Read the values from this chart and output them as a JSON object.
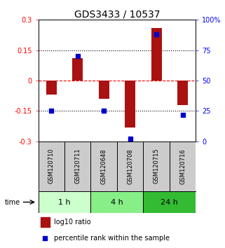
{
  "title": "GDS3433 / 10537",
  "samples": [
    "GSM120710",
    "GSM120711",
    "GSM120648",
    "GSM120708",
    "GSM120715",
    "GSM120716"
  ],
  "log10_ratio": [
    -0.07,
    0.11,
    -0.09,
    -0.23,
    0.26,
    -0.12
  ],
  "percentile_rank": [
    25,
    70,
    25,
    2,
    88,
    22
  ],
  "ylim_left": [
    -0.3,
    0.3
  ],
  "ylim_right": [
    0,
    100
  ],
  "yticks_left": [
    -0.3,
    -0.15,
    0,
    0.15,
    0.3
  ],
  "yticks_right": [
    0,
    25,
    50,
    75,
    100
  ],
  "hlines": [
    0.15,
    0.0,
    -0.15
  ],
  "hline_styles": [
    "dotted",
    "dashed",
    "dotted"
  ],
  "hline_colors": [
    "black",
    "red",
    "black"
  ],
  "bar_color": "#AA1111",
  "dot_color": "#0000CC",
  "groups": [
    {
      "label": "1 h",
      "samples": [
        "GSM120710",
        "GSM120711"
      ],
      "color": "#CCFFCC"
    },
    {
      "label": "4 h",
      "samples": [
        "GSM120648",
        "GSM120708"
      ],
      "color": "#88EE88"
    },
    {
      "label": "24 h",
      "samples": [
        "GSM120715",
        "GSM120716"
      ],
      "color": "#33BB33"
    }
  ],
  "legend_bar_label": "log10 ratio",
  "legend_dot_label": "percentile rank within the sample",
  "bar_width": 0.4,
  "dot_size": 25,
  "title_fontsize": 10,
  "tick_fontsize": 7,
  "group_label_fontsize": 8,
  "sample_label_fontsize": 6
}
